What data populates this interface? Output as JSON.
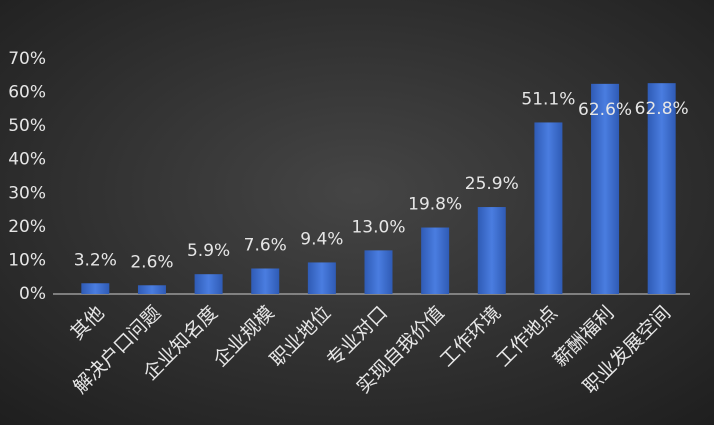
{
  "chart_data": {
    "type": "bar",
    "categories": [
      "其他",
      "解决户口问题",
      "企业知名度",
      "企业规模",
      "职业地位",
      "专业对口",
      "实现自我价值",
      "工作环境",
      "工作地点",
      "薪酬福利",
      "职业发展空间"
    ],
    "values": [
      3.2,
      2.6,
      5.9,
      7.6,
      9.4,
      13.0,
      19.8,
      25.9,
      51.1,
      62.6,
      62.8
    ],
    "value_labels": [
      "3.2%",
      "2.6%",
      "5.9%",
      "7.6%",
      "9.4%",
      "13.0%",
      "19.8%",
      "25.9%",
      "51.1%",
      "62.6%",
      "62.8%"
    ],
    "color": "#4472c4",
    "ylim": [
      0,
      70
    ],
    "yticks": [
      {
        "value": 0,
        "label": "0%"
      },
      {
        "value": 10,
        "label": "10%"
      },
      {
        "value": 20,
        "label": "20%"
      },
      {
        "value": 30,
        "label": "30%"
      },
      {
        "value": 40,
        "label": "40%"
      },
      {
        "value": 50,
        "label": "50%"
      },
      {
        "value": 60,
        "label": "60%"
      },
      {
        "value": 70,
        "label": "70%"
      }
    ],
    "grid": false
  }
}
